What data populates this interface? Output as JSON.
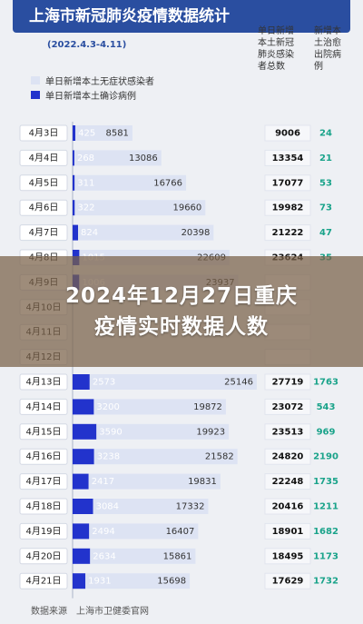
{
  "header": {
    "title": "上海市新冠肺炎疫情数据统计",
    "date_range": "(2022.4.3-4.11)"
  },
  "legend": [
    {
      "label": "单日新增本土无症状感染者",
      "color": "#dde3f3"
    },
    {
      "label": "单日新增本土确诊病例",
      "color": "#2233cc"
    }
  ],
  "columns": {
    "total_head": [
      "单日新增",
      "本土新冠",
      "肺炎感染",
      "者总数"
    ],
    "recovered_head": [
      "新增本",
      "土治愈",
      "出院病",
      "例"
    ]
  },
  "overlay": {
    "line1": "2024年12月27日重庆",
    "line2": "疫情实时数据人数"
  },
  "source": "数据来源　上海市卫健委官网",
  "colors": {
    "title_bg": "#2a4ea0",
    "confirmed_bar": "#2233cc",
    "asymptomatic_bar": "#dde3f3",
    "total_text": "#111111",
    "recovered_text": "#1aa38a"
  },
  "chart_data": {
    "type": "bar",
    "orientation": "horizontal",
    "stacked": true,
    "categories": [
      "4月3日",
      "4月4日",
      "4月5日",
      "4月6日",
      "4月7日",
      "4月8日",
      "4月9日",
      "4月10日",
      "4月11日",
      "4月12日",
      "4月13日",
      "4月14日",
      "4月15日",
      "4月16日",
      "4月17日",
      "4月18日",
      "4月19日",
      "4月20日",
      "4月21日"
    ],
    "series": [
      {
        "name": "单日新增本土确诊病例",
        "values": [
          425,
          268,
          311,
          322,
          824,
          1015,
          1006,
          null,
          null,
          null,
          2573,
          3200,
          3590,
          3238,
          2417,
          3084,
          2494,
          2634,
          1931
        ]
      },
      {
        "name": "单日新增本土无症状感染者",
        "values": [
          8581,
          13086,
          16766,
          19660,
          20398,
          22609,
          23937,
          null,
          null,
          null,
          25146,
          19872,
          19923,
          21582,
          19831,
          17332,
          16407,
          15861,
          15698
        ]
      }
    ],
    "totals": [
      9006,
      13354,
      17077,
      19982,
      21222,
      23624,
      null,
      null,
      null,
      null,
      27719,
      23072,
      23513,
      24820,
      22248,
      20416,
      18901,
      18495,
      17629
    ],
    "recovered": [
      24,
      21,
      53,
      73,
      47,
      35,
      null,
      null,
      null,
      null,
      1763,
      543,
      969,
      2190,
      1735,
      1211,
      1682,
      1173,
      1732
    ]
  }
}
